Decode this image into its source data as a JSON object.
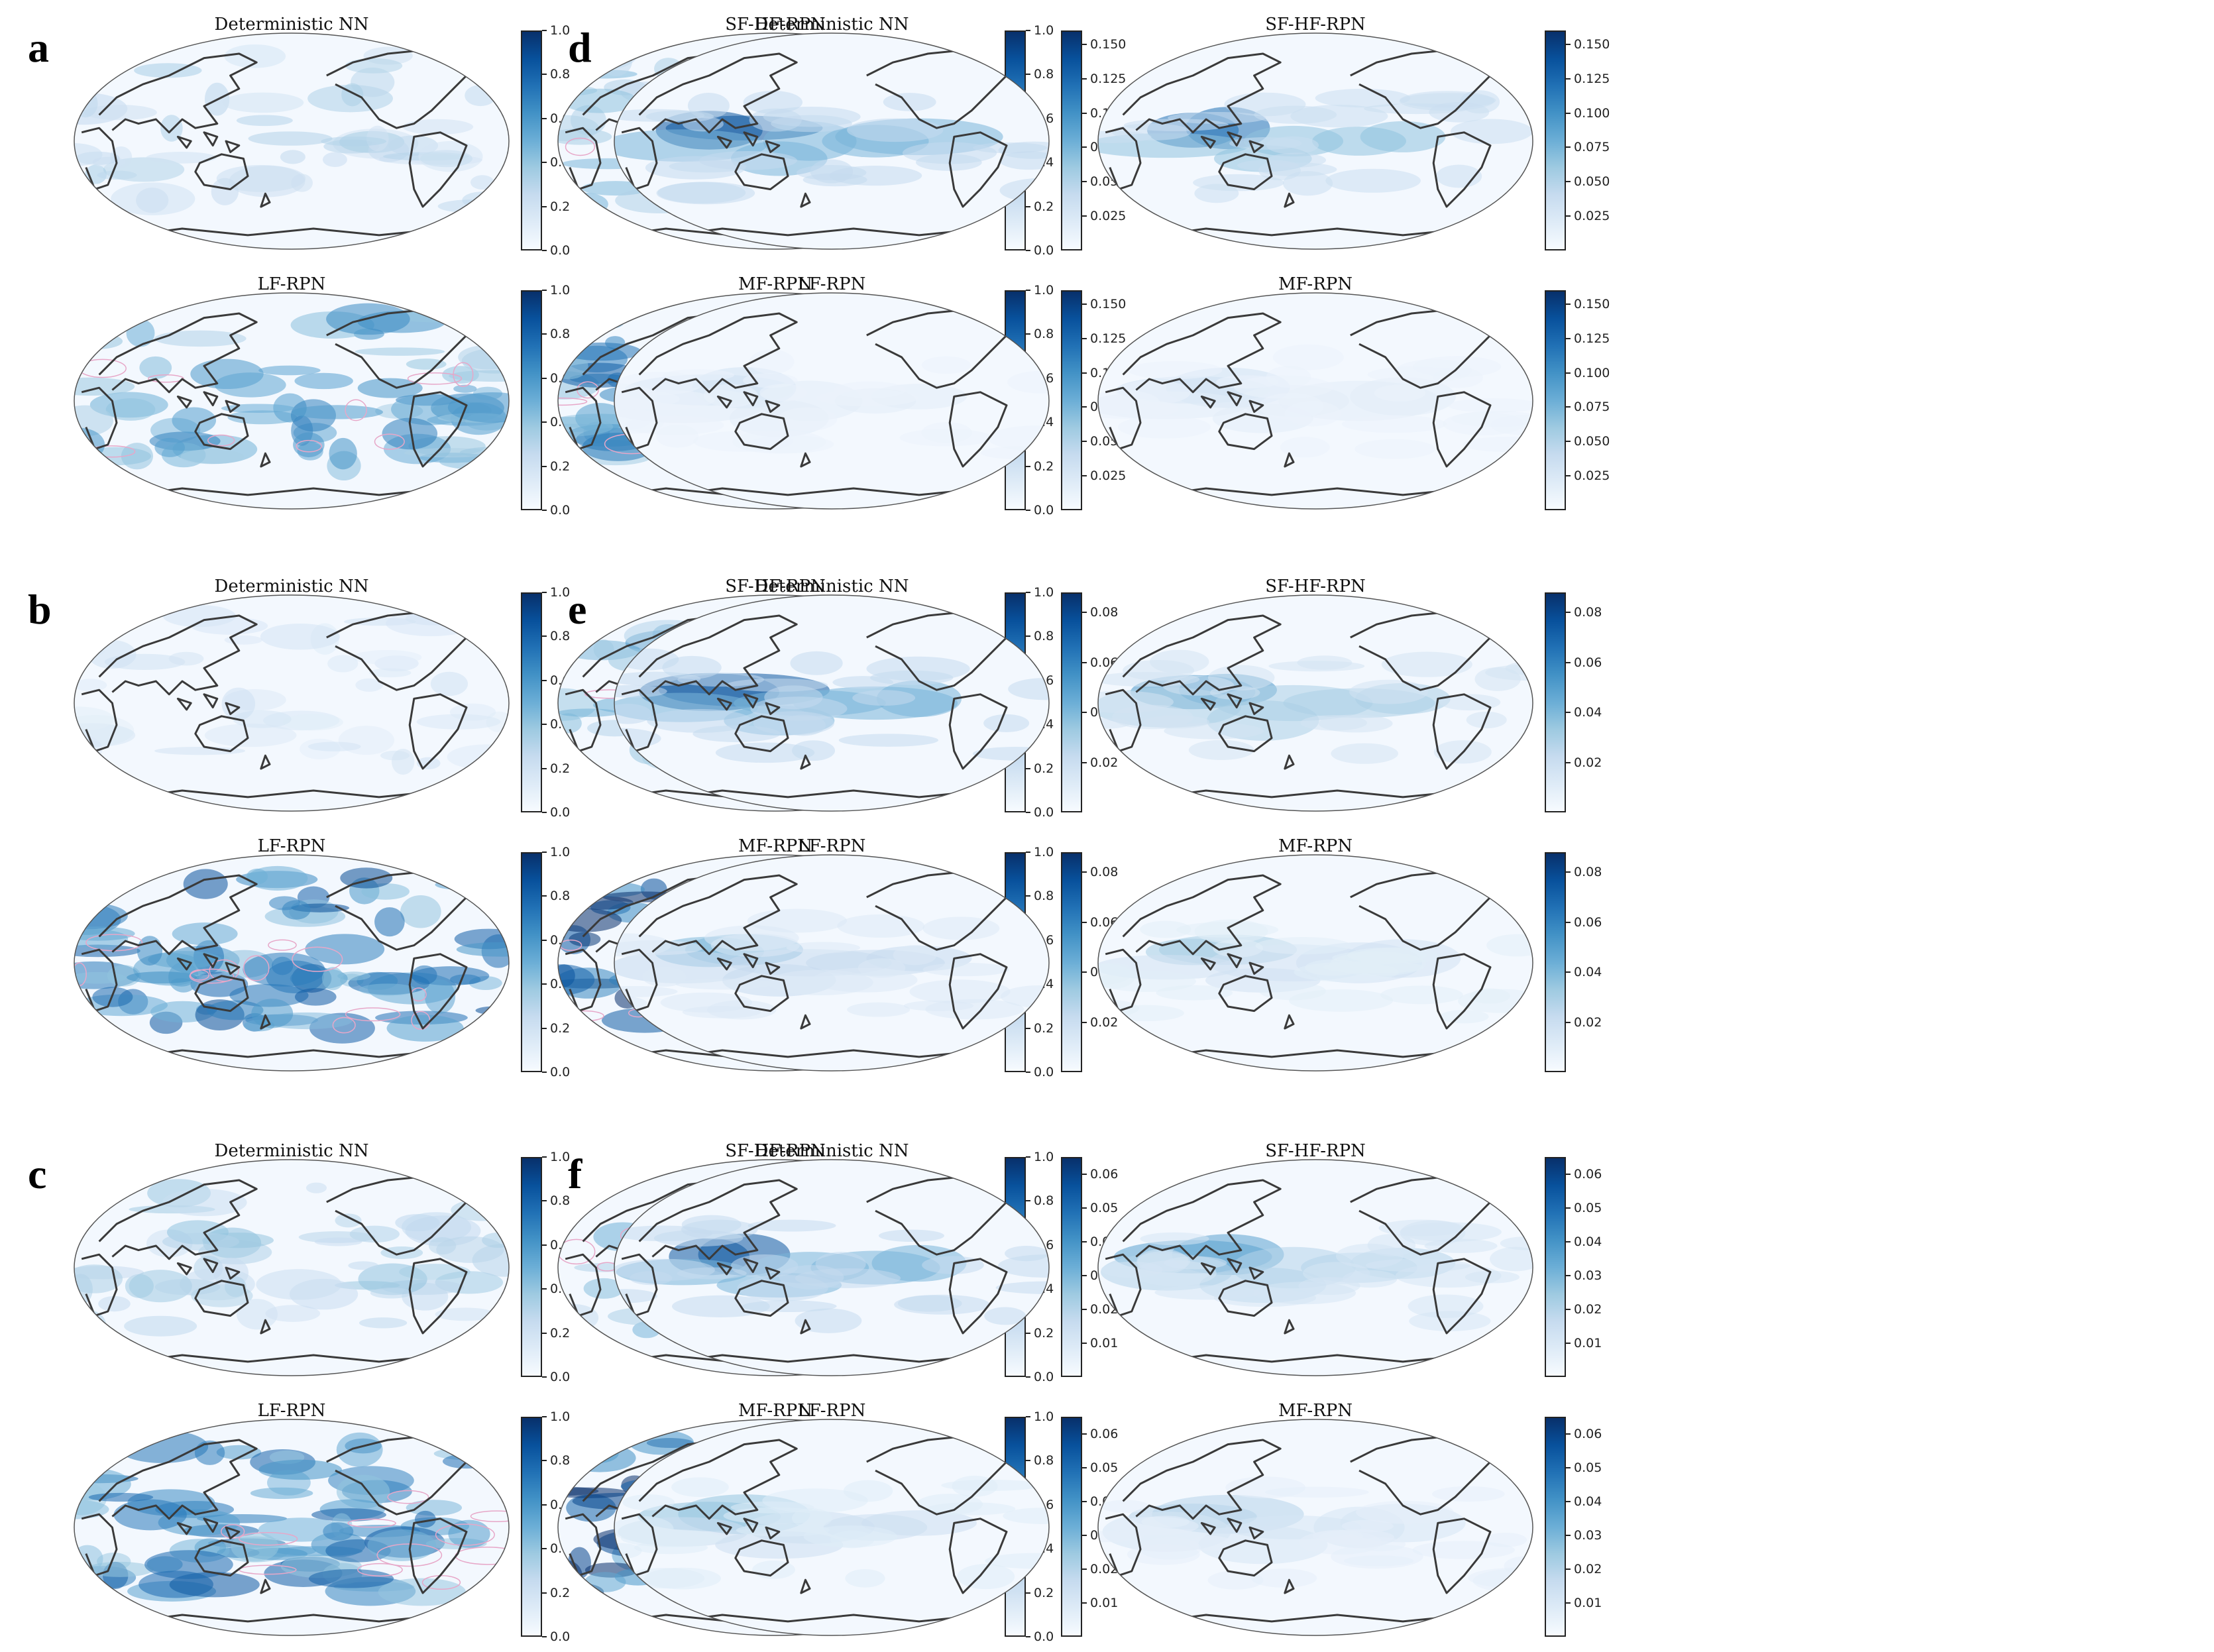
{
  "figure": {
    "groups": [
      {
        "letter": "a",
        "col": 0,
        "row": 0,
        "titles": [
          "Deterministic NN",
          "SF-HF-RPN",
          "LF-RPN",
          "MF-RPN"
        ],
        "ticks": [
          "0.0",
          "0.2",
          "0.4",
          "0.6",
          "0.8",
          "1.0"
        ],
        "max": 1.0,
        "min": 0.0,
        "intensity": [
          0.25,
          0.35,
          0.5,
          0.6
        ],
        "contour": true
      },
      {
        "letter": "b",
        "col": 0,
        "row": 1,
        "titles": [
          "Deterministic NN",
          "SF-HF-RPN",
          "LF-RPN",
          "MF-RPN"
        ],
        "ticks": [
          "0.0",
          "0.2",
          "0.4",
          "0.6",
          "0.8",
          "1.0"
        ],
        "max": 1.0,
        "min": 0.0,
        "intensity": [
          0.15,
          0.45,
          0.65,
          0.95
        ],
        "contour": true
      },
      {
        "letter": "c",
        "col": 0,
        "row": 2,
        "titles": [
          "Deterministic NN",
          "SF-HF-RPN",
          "LF-RPN",
          "MF-RPN"
        ],
        "ticks": [
          "0.0",
          "0.2",
          "0.4",
          "0.6",
          "0.8",
          "1.0"
        ],
        "max": 1.0,
        "min": 0.0,
        "intensity": [
          0.3,
          0.35,
          0.6,
          0.85
        ],
        "contour": true
      },
      {
        "letter": "d",
        "col": 1,
        "row": 0,
        "titles": [
          "Deterministic NN",
          "SF-HF-RPN",
          "LF-RPN",
          "MF-RPN"
        ],
        "ticks": [
          "0.025",
          "0.050",
          "0.075",
          "0.100",
          "0.125",
          "0.150"
        ],
        "max": 0.16,
        "min": 0.0,
        "intensity": [
          0.85,
          0.75,
          0.2,
          0.2
        ],
        "contour": false
      },
      {
        "letter": "e",
        "col": 1,
        "row": 1,
        "titles": [
          "Deterministic NN",
          "SF-HF-RPN",
          "LF-RPN",
          "MF-RPN"
        ],
        "ticks": [
          "0.02",
          "0.04",
          "0.06",
          "0.08"
        ],
        "max": 0.088,
        "min": 0.0,
        "intensity": [
          0.85,
          0.6,
          0.45,
          0.35
        ],
        "contour": false
      },
      {
        "letter": "f",
        "col": 1,
        "row": 2,
        "titles": [
          "Deterministic NN",
          "SF-HF-RPN",
          "LF-RPN",
          "MF-RPN"
        ],
        "ticks": [
          "0.01",
          "0.02",
          "0.03",
          "0.04",
          "0.05",
          "0.06"
        ],
        "max": 0.065,
        "min": 0.0,
        "intensity": [
          0.85,
          0.55,
          0.4,
          0.3
        ],
        "contour": false
      }
    ],
    "colormap": "Blues",
    "colors": {
      "low": "#f7fbff",
      "high": "#08306b",
      "coast": "#3a3a3a",
      "contour": "#e7a7c8"
    }
  },
  "chart_data": {
    "type": "heatmap",
    "panels": [
      "a",
      "b",
      "c",
      "d",
      "e",
      "f"
    ],
    "models": [
      "Deterministic NN",
      "SF-HF-RPN",
      "LF-RPN",
      "MF-RPN"
    ],
    "colorbar_ranges": {
      "a": [
        0.0,
        1.0
      ],
      "b": [
        0.0,
        1.0
      ],
      "c": [
        0.0,
        1.0
      ],
      "d": [
        0.0,
        0.16
      ],
      "e": [
        0.0,
        0.088
      ],
      "f": [
        0.0,
        0.065
      ]
    },
    "projection": "Robinson (Pacific-centred)"
  }
}
